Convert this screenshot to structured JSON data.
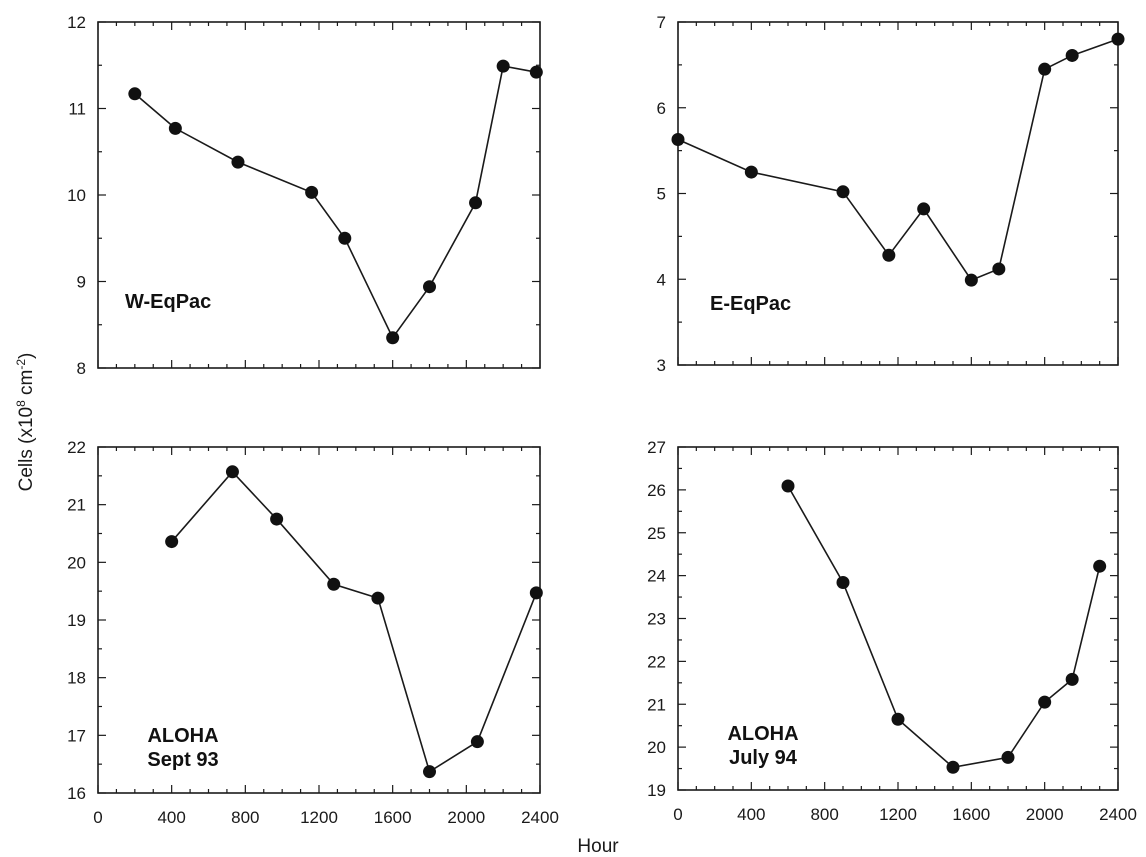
{
  "figure": {
    "ylabel_main": "Cells (x10",
    "ylabel_exp": "8",
    "ylabel_unit": " cm",
    "ylabel_unit_exp": "-2",
    "ylabel_close": ")",
    "xlabel": "Hour"
  },
  "chart_data": [
    {
      "type": "line",
      "panel": "top-left",
      "label_lines": [
        "W-EqPac"
      ],
      "x": [
        200,
        420,
        760,
        1160,
        1340,
        1600,
        1800,
        2050,
        2200,
        2380
      ],
      "y": [
        11.17,
        10.77,
        10.38,
        10.03,
        9.5,
        8.35,
        8.94,
        9.91,
        11.49,
        11.42
      ],
      "xlim": [
        0,
        2400
      ],
      "ylim": [
        8,
        12
      ],
      "yticks": [
        8,
        9,
        10,
        11,
        12
      ],
      "xticks_labeled": false
    },
    {
      "type": "line",
      "panel": "top-right",
      "label_lines": [
        "E-EqPac"
      ],
      "x": [
        0,
        400,
        900,
        1150,
        1340,
        1600,
        1750,
        2000,
        2150,
        2400
      ],
      "y": [
        5.63,
        5.25,
        5.02,
        4.28,
        4.82,
        3.99,
        4.12,
        6.45,
        6.61,
        6.8
      ],
      "xlim": [
        0,
        2400
      ],
      "ylim": [
        3,
        7
      ],
      "yticks": [
        3,
        4,
        5,
        6,
        7
      ],
      "xticks_labeled": false
    },
    {
      "type": "line",
      "panel": "bottom-left",
      "label_lines": [
        "ALOHA",
        "Sept 93"
      ],
      "x": [
        400,
        730,
        970,
        1280,
        1520,
        1800,
        2060,
        2380
      ],
      "y": [
        20.36,
        21.57,
        20.75,
        19.62,
        19.38,
        16.37,
        16.89,
        19.47
      ],
      "xlim": [
        0,
        2400
      ],
      "ylim": [
        16,
        22
      ],
      "yticks": [
        16,
        17,
        18,
        19,
        20,
        21,
        22
      ],
      "xticks": [
        0,
        400,
        800,
        1200,
        1600,
        2000,
        2400
      ],
      "xticklabels": [
        "0",
        "400",
        "800",
        "1200",
        "1600",
        "2000",
        "2400"
      ],
      "xticks_labeled": true
    },
    {
      "type": "line",
      "panel": "bottom-right",
      "label_lines": [
        "ALOHA",
        "July 94"
      ],
      "x": [
        600,
        900,
        1200,
        1500,
        1800,
        2000,
        2150,
        2300
      ],
      "y": [
        26.09,
        23.84,
        20.65,
        19.53,
        19.76,
        21.05,
        21.58,
        24.22
      ],
      "xlim": [
        0,
        2400
      ],
      "ylim": [
        19,
        27
      ],
      "yticks": [
        19,
        20,
        21,
        22,
        23,
        24,
        25,
        26,
        27
      ],
      "xticks": [
        0,
        400,
        800,
        1200,
        1600,
        2000,
        2400
      ],
      "xticklabels": [
        "0",
        "400",
        "800",
        "1200",
        "1600",
        "2000",
        "2400"
      ],
      "xticks_labeled": true
    }
  ]
}
